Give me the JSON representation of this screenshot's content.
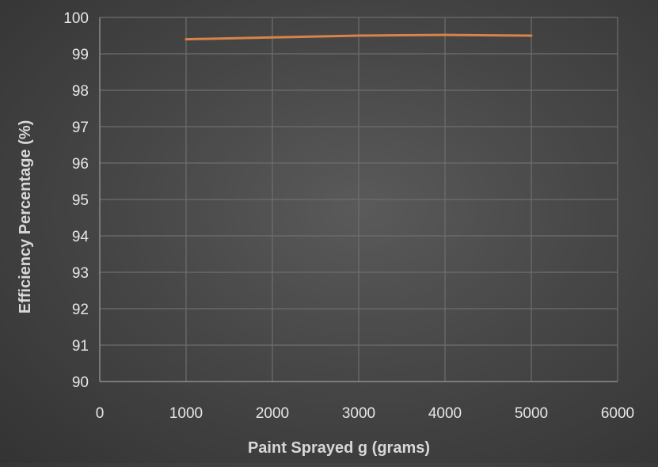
{
  "chart_data": {
    "type": "line",
    "title": "",
    "xlabel": "Paint Sprayed g (grams)",
    "ylabel": "Efficiency Percentage (%)",
    "xlim": [
      0,
      6000
    ],
    "ylim": [
      90,
      100
    ],
    "x_ticks": [
      "0",
      "1000",
      "2000",
      "3000",
      "4000",
      "5000",
      "6000"
    ],
    "y_ticks": [
      "90",
      "91",
      "92",
      "93",
      "94",
      "95",
      "96",
      "97",
      "98",
      "99",
      "100"
    ],
    "grid": true,
    "legend": "none",
    "series": [
      {
        "color": "#d9834a",
        "x": [
          1000,
          2000,
          3000,
          4000,
          5000
        ],
        "y": [
          99.4,
          99.45,
          99.5,
          99.52,
          99.5
        ]
      }
    ],
    "colors": {
      "grid": "#6e6e6e",
      "axis": "#8a8a8a",
      "text": "#e6e6e6",
      "label": "#d8d8d8"
    }
  }
}
